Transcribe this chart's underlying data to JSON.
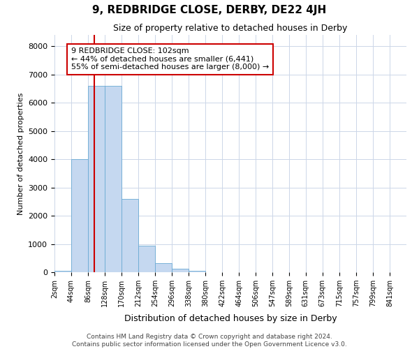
{
  "title": "9, REDBRIDGE CLOSE, DERBY, DE22 4JH",
  "subtitle": "Size of property relative to detached houses in Derby",
  "xlabel": "Distribution of detached houses by size in Derby",
  "ylabel": "Number of detached properties",
  "bin_edges": [
    2,
    44,
    86,
    128,
    170,
    212,
    254,
    296,
    338,
    380,
    422,
    464,
    506,
    547,
    589,
    631,
    673,
    715,
    757,
    799,
    841
  ],
  "bar_heights": [
    50,
    4000,
    6600,
    6600,
    2600,
    950,
    330,
    130,
    50,
    10,
    5,
    0,
    0,
    0,
    0,
    0,
    0,
    0,
    0,
    0
  ],
  "bar_color": "#c5d8f0",
  "bar_edge_color": "#6aaad4",
  "property_size": 102,
  "red_line_color": "#cc0000",
  "annotation_text": "9 REDBRIDGE CLOSE: 102sqm\n← 44% of detached houses are smaller (6,441)\n55% of semi-detached houses are larger (8,000) →",
  "annotation_box_color": "#ffffff",
  "annotation_box_edge": "#cc0000",
  "ylim": [
    0,
    8400
  ],
  "yticks": [
    0,
    1000,
    2000,
    3000,
    4000,
    5000,
    6000,
    7000,
    8000
  ],
  "background_color": "#ffffff",
  "grid_color": "#ccd6e8",
  "footer_line1": "Contains HM Land Registry data © Crown copyright and database right 2024.",
  "footer_line2": "Contains public sector information licensed under the Open Government Licence v3.0."
}
